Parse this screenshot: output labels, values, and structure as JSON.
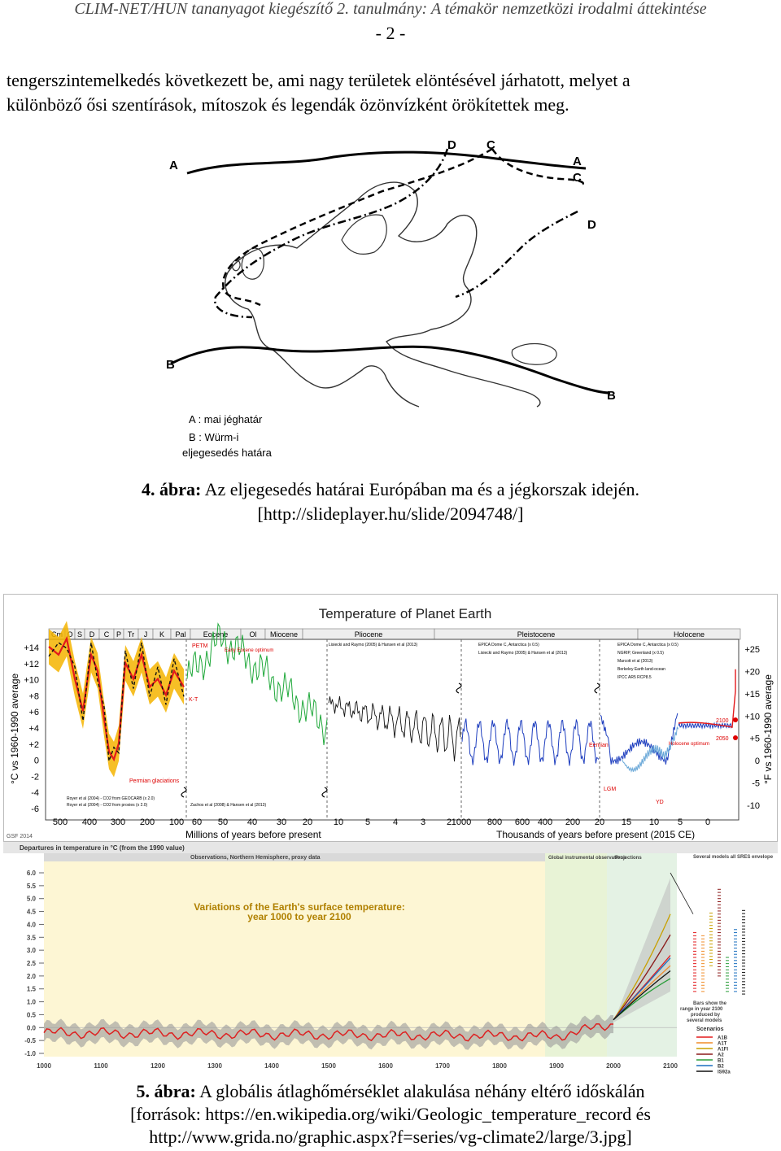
{
  "header": {
    "title": "CLIM-NET/HUN tananyagot kiegészítő 2. tanulmány: A témakör nemzetközi irodalmi áttekintése",
    "page_number": "- 2 -"
  },
  "intro": {
    "line1": "tengerszintemelkedés következett be, ami nagy területek elöntésével járhatott, melyet a",
    "line2": "különböző ősi szentírások, mítoszok és legendák özönvízként örökítettek meg."
  },
  "figure4": {
    "map_letters": [
      "A",
      "D",
      "C",
      "A",
      "C",
      "D",
      "B",
      "B"
    ],
    "legend_a": "A : mai jéghatár",
    "legend_b_1": "B : Würm-i",
    "legend_b_2": "eljegesedés határa",
    "caption_label": "4. ábra:",
    "caption_text": " Az eljegesedés határai Európában ma és a jégkorszak idején.",
    "caption_source": "[http://slideplayer.hu/slide/2094748/]"
  },
  "figure5a": {
    "title": "Temperature of Planet Earth",
    "periods": [
      "Cm",
      "O",
      "S",
      "D",
      "C",
      "P",
      "Tr",
      "J",
      "K",
      "Pal",
      "Eocene",
      "Ol",
      "Miocene",
      "Pliocene",
      "Pleistocene",
      "Holocene"
    ],
    "y_left_label": "°C vs 1960-1990 average",
    "y_left_ticks": [
      "+14",
      "+12",
      "+10",
      "+8",
      "+6",
      "+4",
      "+2",
      "0",
      "-2",
      "-4",
      "-6"
    ],
    "y_right_label": "°F vs 1960-1990 average",
    "y_right_ticks": [
      "+25",
      "+20",
      "+15",
      "+10",
      "+5",
      "0",
      "-5",
      "-10"
    ],
    "x_ticks": [
      "500",
      "400",
      "300",
      "200",
      "100",
      "60",
      "50",
      "40",
      "30",
      "20",
      "10",
      "5",
      "4",
      "3",
      "2",
      "1000",
      "800",
      "600",
      "400",
      "200",
      "20",
      "15",
      "10",
      "5",
      "0"
    ],
    "x_label_left": "Millions of years before present",
    "x_label_right": "Thousands of years before present (2015 CE)",
    "annotations": {
      "petm": "PETM",
      "eocene_opt": "Early Eocene optimum",
      "kt": "K-T",
      "permian": "Permian glaciations",
      "eemian": "Eemian",
      "lgm": "LGM",
      "yd": "YD",
      "holocene_opt": "Holocene optimum",
      "y2100": "2100",
      "y2050": "2050",
      "gsf": "GSF 2014"
    },
    "sources": {
      "royer1": "Royer et al (2004) - CO2 from GEOCARB (x 2.0)",
      "royer2": "Royer et al (2004) - CO2 from proxies (x 2.0)",
      "zachos": "Zachos et al (2008) & Hansen et al (2013)",
      "lisiecki1": "Lisiecki and Raymo (2005) & Hansen et al (2013)",
      "epica1": "EPICA Dome C, Antarctica (x 0.5)",
      "lisiecki2": "Lisiecki and Raymo (2005) & Hansen et al (2013)",
      "epica2": "EPICA Dome C, Antarctica (x 0.5)",
      "ngrip": "NGRIP, Greenland (x 0.5)",
      "marcott": "Marcott et al (2013)",
      "berkeley": "Berkeley Earth land-ocean",
      "ipcc": "IPCC AR5 RCP8.5"
    },
    "colors": {
      "red": "#e31a1c",
      "yellow": "#f5b400",
      "green": "#1fa83a",
      "black": "#111111",
      "blue": "#1f3fbf",
      "lightblue": "#6aa8d8"
    }
  },
  "figure5b": {
    "header": "Departures in temperature in °C (from the 1990 value)",
    "band_obs": "Observations, Northern Hemisphere, proxy data",
    "band_global": "Global instrumental observations",
    "band_proj": "Projections",
    "models_note": "Several models all SRES envelope",
    "title_line1": "Variations of the Earth's surface temperature:",
    "title_line2": "year 1000 to year 2100",
    "y_ticks": [
      "6.0",
      "5.5",
      "5.0",
      "4.5",
      "4.0",
      "3.5",
      "3.0",
      "2.5",
      "2.0",
      "1.5",
      "1.0",
      "0.5",
      "0.0",
      "-0.5",
      "-1.0"
    ],
    "x_ticks": [
      "1000",
      "1100",
      "1200",
      "1300",
      "1400",
      "1500",
      "1600",
      "1700",
      "1800",
      "1900",
      "2000",
      "2100"
    ],
    "bars_note_1": "Bars show the",
    "bars_note_2": "range in year 2100",
    "bars_note_3": "produced by",
    "bars_note_4": "several models",
    "scenarios_title": "Scenarios",
    "scenarios": [
      "A1B",
      "A1T",
      "A1FI",
      "A2",
      "B1",
      "B2",
      "IS92a"
    ],
    "scenario_colors": [
      "#e31a1c",
      "#f08c28",
      "#c8a000",
      "#8b1a1a",
      "#2a9d3a",
      "#1a6fbf",
      "#111111"
    ]
  },
  "figure5": {
    "caption_label": "5. ábra:",
    "caption_text": " A globális átlaghőmérséklet alakulása néhány eltérő időskálán",
    "caption_line2": "[források: https://en.wikipedia.org/wiki/Geologic_temperature_record és",
    "caption_line3": "http://www.grida.no/graphic.aspx?f=series/vg-climate2/large/3.jpg]"
  }
}
